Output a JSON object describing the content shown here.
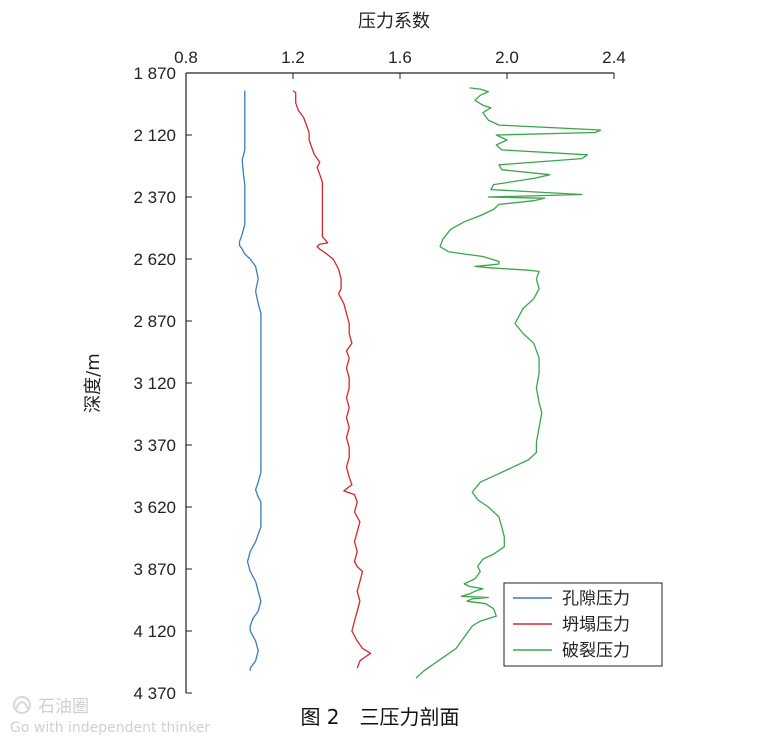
{
  "chart_data": {
    "type": "line",
    "title": "",
    "xlabel": "压力系数",
    "ylabel": "深度/m",
    "xlim": [
      0.8,
      2.4
    ],
    "ylim": [
      1870,
      4370
    ],
    "x_ticks": [
      "0.8",
      "1.2",
      "1.6",
      "2.0",
      "2.4"
    ],
    "y_ticks": [
      "1 870",
      "2 120",
      "2 370",
      "2 620",
      "2 870",
      "3 120",
      "3 370",
      "3 620",
      "3 870",
      "4 120",
      "4 370"
    ],
    "y_inverted": true,
    "grid": false,
    "legend_position": "bottom-right",
    "series": [
      {
        "name": "孔隙压力",
        "color": "#3a7cc0",
        "points": [
          [
            1.02,
            1941
          ],
          [
            1.02,
            2000
          ],
          [
            1.02,
            2060
          ],
          [
            1.02,
            2100
          ],
          [
            1.02,
            2140
          ],
          [
            1.02,
            2180
          ],
          [
            1.01,
            2220
          ],
          [
            1.015,
            2280
          ],
          [
            1.02,
            2320
          ],
          [
            1.02,
            2360
          ],
          [
            1.02,
            2400
          ],
          [
            1.02,
            2440
          ],
          [
            1.02,
            2480
          ],
          [
            1.01,
            2520
          ],
          [
            1.0,
            2550
          ],
          [
            1.0,
            2565
          ],
          [
            1.01,
            2580
          ],
          [
            1.02,
            2600
          ],
          [
            1.04,
            2620
          ],
          [
            1.06,
            2650
          ],
          [
            1.07,
            2700
          ],
          [
            1.06,
            2750
          ],
          [
            1.07,
            2800
          ],
          [
            1.08,
            2840
          ],
          [
            1.08,
            2900
          ],
          [
            1.08,
            3000
          ],
          [
            1.08,
            3100
          ],
          [
            1.08,
            3200
          ],
          [
            1.08,
            3300
          ],
          [
            1.08,
            3400
          ],
          [
            1.08,
            3480
          ],
          [
            1.07,
            3520
          ],
          [
            1.06,
            3550
          ],
          [
            1.07,
            3580
          ],
          [
            1.08,
            3600
          ],
          [
            1.08,
            3650
          ],
          [
            1.08,
            3700
          ],
          [
            1.06,
            3760
          ],
          [
            1.04,
            3800
          ],
          [
            1.03,
            3840
          ],
          [
            1.04,
            3880
          ],
          [
            1.06,
            3920
          ],
          [
            1.07,
            3960
          ],
          [
            1.08,
            4000
          ],
          [
            1.07,
            4040
          ],
          [
            1.05,
            4070
          ],
          [
            1.04,
            4100
          ],
          [
            1.04,
            4120
          ],
          [
            1.06,
            4160
          ],
          [
            1.07,
            4200
          ],
          [
            1.06,
            4240
          ],
          [
            1.04,
            4270
          ],
          [
            1.04,
            4280
          ]
        ]
      },
      {
        "name": "坍塌压力",
        "color": "#d6262e",
        "points": [
          [
            1.2,
            1941
          ],
          [
            1.21,
            1950
          ],
          [
            1.21,
            1990
          ],
          [
            1.22,
            2020
          ],
          [
            1.24,
            2050
          ],
          [
            1.25,
            2080
          ],
          [
            1.26,
            2110
          ],
          [
            1.26,
            2140
          ],
          [
            1.27,
            2170
          ],
          [
            1.28,
            2200
          ],
          [
            1.3,
            2230
          ],
          [
            1.29,
            2250
          ],
          [
            1.3,
            2280
          ],
          [
            1.31,
            2310
          ],
          [
            1.31,
            2350
          ],
          [
            1.31,
            2400
          ],
          [
            1.31,
            2450
          ],
          [
            1.31,
            2500
          ],
          [
            1.31,
            2530
          ],
          [
            1.33,
            2555
          ],
          [
            1.3,
            2560
          ],
          [
            1.29,
            2570
          ],
          [
            1.3,
            2580
          ],
          [
            1.32,
            2595
          ],
          [
            1.35,
            2620
          ],
          [
            1.37,
            2660
          ],
          [
            1.38,
            2700
          ],
          [
            1.38,
            2740
          ],
          [
            1.37,
            2760
          ],
          [
            1.39,
            2800
          ],
          [
            1.4,
            2840
          ],
          [
            1.41,
            2880
          ],
          [
            1.41,
            2920
          ],
          [
            1.42,
            2960
          ],
          [
            1.4,
            2990
          ],
          [
            1.41,
            3020
          ],
          [
            1.4,
            3060
          ],
          [
            1.41,
            3100
          ],
          [
            1.41,
            3140
          ],
          [
            1.4,
            3180
          ],
          [
            1.41,
            3220
          ],
          [
            1.4,
            3260
          ],
          [
            1.41,
            3300
          ],
          [
            1.4,
            3340
          ],
          [
            1.41,
            3380
          ],
          [
            1.41,
            3420
          ],
          [
            1.4,
            3460
          ],
          [
            1.41,
            3500
          ],
          [
            1.42,
            3530
          ],
          [
            1.39,
            3555
          ],
          [
            1.43,
            3570
          ],
          [
            1.44,
            3600
          ],
          [
            1.43,
            3640
          ],
          [
            1.45,
            3680
          ],
          [
            1.44,
            3720
          ],
          [
            1.43,
            3760
          ],
          [
            1.44,
            3800
          ],
          [
            1.43,
            3840
          ],
          [
            1.44,
            3860
          ],
          [
            1.46,
            3880
          ],
          [
            1.45,
            3920
          ],
          [
            1.44,
            3960
          ],
          [
            1.45,
            4000
          ],
          [
            1.44,
            4040
          ],
          [
            1.43,
            4080
          ],
          [
            1.42,
            4120
          ],
          [
            1.44,
            4160
          ],
          [
            1.46,
            4190
          ],
          [
            1.49,
            4210
          ],
          [
            1.47,
            4225
          ],
          [
            1.45,
            4240
          ],
          [
            1.44,
            4270
          ]
        ]
      },
      {
        "name": "破裂压力",
        "color": "#3aa64a",
        "points": [
          [
            1.86,
            1930
          ],
          [
            1.9,
            1935
          ],
          [
            1.93,
            1945
          ],
          [
            1.9,
            1960
          ],
          [
            1.88,
            1980
          ],
          [
            1.91,
            2000
          ],
          [
            1.94,
            2010
          ],
          [
            1.91,
            2030
          ],
          [
            1.93,
            2060
          ],
          [
            1.97,
            2080
          ],
          [
            2.35,
            2100
          ],
          [
            2.33,
            2110
          ],
          [
            1.96,
            2120
          ],
          [
            2.0,
            2140
          ],
          [
            1.96,
            2160
          ],
          [
            1.98,
            2180
          ],
          [
            2.3,
            2200
          ],
          [
            2.28,
            2215
          ],
          [
            1.97,
            2240
          ],
          [
            1.98,
            2260
          ],
          [
            2.16,
            2280
          ],
          [
            2.1,
            2295
          ],
          [
            1.95,
            2320
          ],
          [
            1.94,
            2340
          ],
          [
            2.28,
            2360
          ],
          [
            1.93,
            2370
          ],
          [
            2.14,
            2375
          ],
          [
            2.1,
            2385
          ],
          [
            1.97,
            2400
          ],
          [
            1.95,
            2420
          ],
          [
            1.9,
            2445
          ],
          [
            1.84,
            2470
          ],
          [
            1.79,
            2500
          ],
          [
            1.76,
            2540
          ],
          [
            1.75,
            2570
          ],
          [
            1.78,
            2590
          ],
          [
            1.84,
            2600
          ],
          [
            1.91,
            2610
          ],
          [
            1.97,
            2630
          ],
          [
            1.97,
            2640
          ],
          [
            1.93,
            2645
          ],
          [
            1.88,
            2650
          ],
          [
            1.93,
            2655
          ],
          [
            2.0,
            2660
          ],
          [
            2.08,
            2665
          ],
          [
            2.12,
            2670
          ],
          [
            2.11,
            2700
          ],
          [
            2.12,
            2740
          ],
          [
            2.1,
            2780
          ],
          [
            2.06,
            2820
          ],
          [
            2.03,
            2880
          ],
          [
            2.06,
            2920
          ],
          [
            2.1,
            2960
          ],
          [
            2.12,
            3020
          ],
          [
            2.12,
            3080
          ],
          [
            2.11,
            3140
          ],
          [
            2.12,
            3200
          ],
          [
            2.13,
            3240
          ],
          [
            2.12,
            3300
          ],
          [
            2.11,
            3360
          ],
          [
            2.11,
            3400
          ],
          [
            2.08,
            3430
          ],
          [
            2.02,
            3460
          ],
          [
            1.96,
            3490
          ],
          [
            1.9,
            3520
          ],
          [
            1.87,
            3560
          ],
          [
            1.89,
            3590
          ],
          [
            1.93,
            3620
          ],
          [
            1.97,
            3660
          ],
          [
            1.98,
            3700
          ],
          [
            1.99,
            3740
          ],
          [
            1.99,
            3780
          ],
          [
            1.95,
            3810
          ],
          [
            1.91,
            3830
          ],
          [
            1.89,
            3860
          ],
          [
            1.9,
            3880
          ],
          [
            1.88,
            3910
          ],
          [
            1.84,
            3930
          ],
          [
            1.86,
            3940
          ],
          [
            1.91,
            3950
          ],
          [
            1.88,
            3960
          ],
          [
            1.86,
            3970
          ],
          [
            1.83,
            3980
          ],
          [
            1.93,
            3985
          ],
          [
            1.87,
            3990
          ],
          [
            1.85,
            4000
          ],
          [
            1.92,
            4010
          ],
          [
            1.95,
            4030
          ],
          [
            1.96,
            4060
          ],
          [
            1.9,
            4080
          ],
          [
            1.87,
            4100
          ],
          [
            1.85,
            4130
          ],
          [
            1.83,
            4160
          ],
          [
            1.81,
            4190
          ],
          [
            1.77,
            4220
          ],
          [
            1.73,
            4250
          ],
          [
            1.69,
            4280
          ],
          [
            1.66,
            4310
          ]
        ]
      }
    ]
  },
  "caption": "图 2　三压力剖面",
  "watermark": {
    "text_cn": "石油圈",
    "text_en": "Go with independent thinker"
  }
}
